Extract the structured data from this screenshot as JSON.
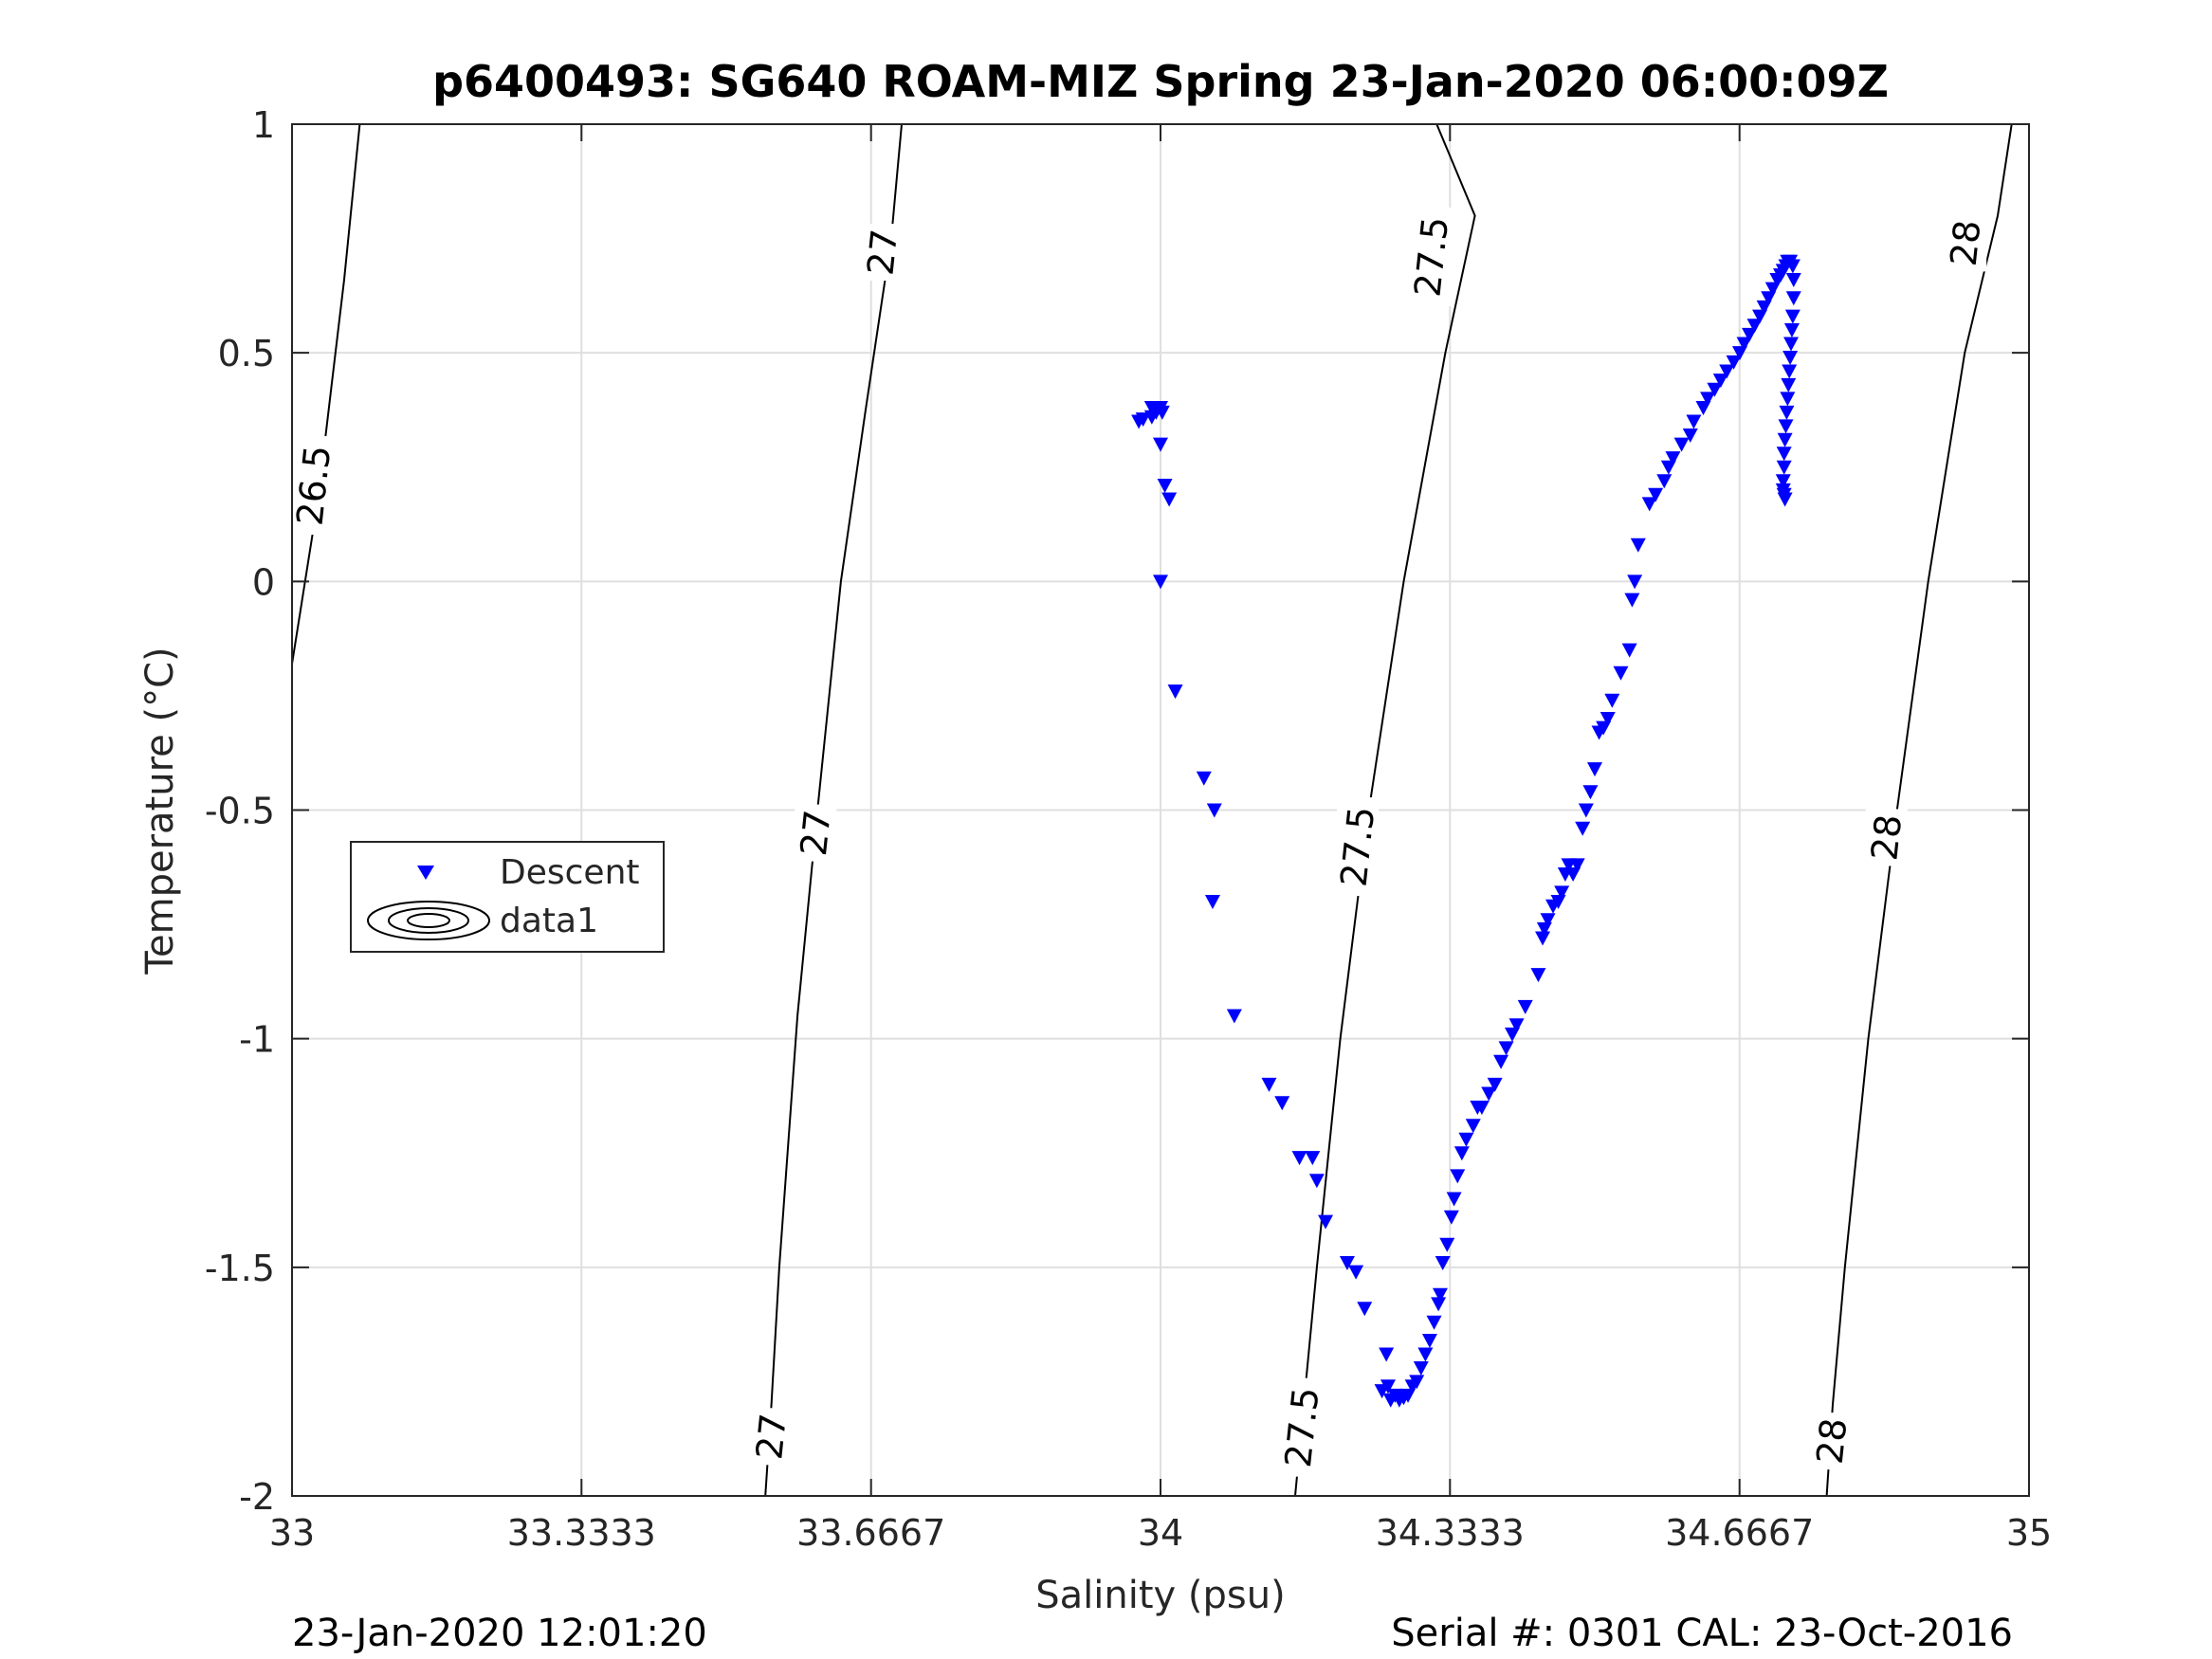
{
  "chart_data": {
    "type": "scatter",
    "title": "p6400493: SG640 ROAM-MIZ Spring 23-Jan-2020 06:00:09Z",
    "xlabel": "Salinity (psu)",
    "ylabel": "Temperature (°C)",
    "xlim": [
      33,
      35
    ],
    "ylim": [
      -2,
      1
    ],
    "grid": true,
    "legend_position": "middle-left",
    "x_ticks": [
      "33",
      "33.3333",
      "33.6667",
      "34",
      "34.3333",
      "34.6667",
      "35"
    ],
    "x_tick_values": [
      33,
      33.3333,
      33.6667,
      34,
      34.3333,
      34.6667,
      35
    ],
    "y_ticks": [
      "1",
      "0.5",
      "0",
      "-0.5",
      "-1",
      "-1.5",
      "-2"
    ],
    "y_tick_values": [
      1,
      0.5,
      0,
      -0.5,
      -1,
      -1.5,
      -2
    ],
    "marker_color": "#0000ff",
    "series": [
      {
        "name": "Descent",
        "marker": "triangle-down",
        "points": [
          [
            33.99,
            0.38
          ],
          [
            33.997,
            0.38
          ],
          [
            34.0,
            0.38
          ],
          [
            33.995,
            0.37
          ],
          [
            34.002,
            0.37
          ],
          [
            33.99,
            0.36
          ],
          [
            33.98,
            0.355
          ],
          [
            33.975,
            0.35
          ],
          [
            34.0,
            0.3
          ],
          [
            34.005,
            0.21
          ],
          [
            34.01,
            0.18
          ],
          [
            34.0,
            0.0
          ],
          [
            34.017,
            -0.24
          ],
          [
            34.05,
            -0.43
          ],
          [
            34.062,
            -0.5
          ],
          [
            34.06,
            -0.7
          ],
          [
            34.085,
            -0.95
          ],
          [
            34.125,
            -1.1
          ],
          [
            34.14,
            -1.14
          ],
          [
            34.16,
            -1.26
          ],
          [
            34.175,
            -1.26
          ],
          [
            34.18,
            -1.31
          ],
          [
            34.19,
            -1.4
          ],
          [
            34.215,
            -1.49
          ],
          [
            34.225,
            -1.51
          ],
          [
            34.235,
            -1.59
          ],
          [
            34.26,
            -1.69
          ],
          [
            34.255,
            -1.77
          ],
          [
            34.262,
            -1.76
          ],
          [
            34.265,
            -1.79
          ],
          [
            34.27,
            -1.78
          ],
          [
            34.275,
            -1.79
          ],
          [
            34.28,
            -1.785
          ],
          [
            34.285,
            -1.78
          ],
          [
            34.29,
            -1.76
          ],
          [
            34.295,
            -1.75
          ],
          [
            34.3,
            -1.72
          ],
          [
            34.305,
            -1.69
          ],
          [
            34.31,
            -1.66
          ],
          [
            34.315,
            -1.62
          ],
          [
            34.32,
            -1.58
          ],
          [
            34.322,
            -1.56
          ],
          [
            34.325,
            -1.49
          ],
          [
            34.33,
            -1.45
          ],
          [
            34.335,
            -1.39
          ],
          [
            34.338,
            -1.35
          ],
          [
            34.342,
            -1.3
          ],
          [
            34.347,
            -1.25
          ],
          [
            34.352,
            -1.22
          ],
          [
            34.36,
            -1.19
          ],
          [
            34.365,
            -1.15
          ],
          [
            34.37,
            -1.15
          ],
          [
            34.378,
            -1.12
          ],
          [
            34.385,
            -1.1
          ],
          [
            34.392,
            -1.05
          ],
          [
            34.398,
            -1.02
          ],
          [
            34.405,
            -0.99
          ],
          [
            34.41,
            -0.97
          ],
          [
            34.42,
            -0.93
          ],
          [
            34.435,
            -0.86
          ],
          [
            34.44,
            -0.78
          ],
          [
            34.442,
            -0.76
          ],
          [
            34.446,
            -0.74
          ],
          [
            34.452,
            -0.71
          ],
          [
            34.458,
            -0.7
          ],
          [
            34.462,
            -0.68
          ],
          [
            34.466,
            -0.64
          ],
          [
            34.47,
            -0.62
          ],
          [
            34.475,
            -0.64
          ],
          [
            34.48,
            -0.62
          ],
          [
            34.486,
            -0.54
          ],
          [
            34.49,
            -0.5
          ],
          [
            34.495,
            -0.46
          ],
          [
            34.5,
            -0.41
          ],
          [
            34.505,
            -0.33
          ],
          [
            34.51,
            -0.32
          ],
          [
            34.515,
            -0.3
          ],
          [
            34.52,
            -0.26
          ],
          [
            34.53,
            -0.2
          ],
          [
            34.54,
            -0.15
          ],
          [
            34.543,
            -0.04
          ],
          [
            34.546,
            0.0
          ],
          [
            34.55,
            0.08
          ],
          [
            34.563,
            0.17
          ],
          [
            34.57,
            0.19
          ],
          [
            34.58,
            0.22
          ],
          [
            34.585,
            0.25
          ],
          [
            34.59,
            0.27
          ],
          [
            34.6,
            0.3
          ],
          [
            34.61,
            0.32
          ],
          [
            34.614,
            0.35
          ],
          [
            34.625,
            0.38
          ],
          [
            34.63,
            0.4
          ],
          [
            34.638,
            0.42
          ],
          [
            34.645,
            0.44
          ],
          [
            34.652,
            0.46
          ],
          [
            34.66,
            0.48
          ],
          [
            34.667,
            0.5
          ],
          [
            34.672,
            0.52
          ],
          [
            34.678,
            0.54
          ],
          [
            34.684,
            0.56
          ],
          [
            34.69,
            0.58
          ],
          [
            34.695,
            0.6
          ],
          [
            34.7,
            0.62
          ],
          [
            34.705,
            0.64
          ],
          [
            34.71,
            0.66
          ],
          [
            34.714,
            0.67
          ],
          [
            34.717,
            0.68
          ],
          [
            34.72,
            0.69
          ],
          [
            34.722,
            0.7
          ],
          [
            34.725,
            0.7
          ],
          [
            34.728,
            0.69
          ],
          [
            34.729,
            0.66
          ],
          [
            34.729,
            0.62
          ],
          [
            34.728,
            0.58
          ],
          [
            34.727,
            0.55
          ],
          [
            34.726,
            0.52
          ],
          [
            34.725,
            0.49
          ],
          [
            34.724,
            0.46
          ],
          [
            34.723,
            0.43
          ],
          [
            34.722,
            0.4
          ],
          [
            34.721,
            0.37
          ],
          [
            34.72,
            0.34
          ],
          [
            34.719,
            0.31
          ],
          [
            34.718,
            0.28
          ],
          [
            34.718,
            0.25
          ],
          [
            34.717,
            0.22
          ],
          [
            34.717,
            0.2
          ],
          [
            34.718,
            0.19
          ],
          [
            34.719,
            0.18
          ]
        ]
      },
      {
        "name": "data1",
        "marker": "contour",
        "contours": [
          {
            "label": "26.5",
            "points": [
              [
                33.0,
                -0.18
              ],
              [
                33.03,
                0.18
              ],
              [
                33.045,
                0.42
              ],
              [
                33.06,
                0.66
              ],
              [
                33.078,
                1.0
              ]
            ],
            "label_positions": [
              [
                33.025,
                0.21
              ]
            ]
          },
          {
            "label": "27",
            "points": [
              [
                33.545,
                -2.0
              ],
              [
                33.552,
                -1.8
              ],
              [
                33.561,
                -1.5
              ],
              [
                33.582,
                -0.95
              ],
              [
                33.605,
                -0.5
              ],
              [
                33.632,
                0.0
              ],
              [
                33.66,
                0.37
              ],
              [
                33.69,
                0.75
              ],
              [
                33.702,
                1.0
              ]
            ],
            "label_positions": [
              [
                33.552,
                -1.87
              ],
              [
                33.603,
                -0.55
              ],
              [
                33.68,
                0.72
              ]
            ]
          },
          {
            "label": "27.5",
            "points": [
              [
                34.155,
                -2.0
              ],
              [
                34.165,
                -1.8
              ],
              [
                34.18,
                -1.5
              ],
              [
                34.207,
                -1.0
              ],
              [
                34.24,
                -0.5
              ],
              [
                34.28,
                0.0
              ],
              [
                34.328,
                0.5
              ],
              [
                34.362,
                0.8
              ],
              [
                34.318,
                1.0
              ]
            ],
            "label_positions": [
              [
                34.163,
                -1.85
              ],
              [
                34.227,
                -0.58
              ],
              [
                34.312,
                0.71
              ]
            ]
          },
          {
            "label": "28",
            "points": [
              [
                34.767,
                -2.0
              ],
              [
                34.774,
                -1.8
              ],
              [
                34.788,
                -1.5
              ],
              [
                34.815,
                -1.0
              ],
              [
                34.848,
                -0.5
              ],
              [
                34.884,
                0.0
              ],
              [
                34.926,
                0.5
              ],
              [
                34.964,
                0.8
              ],
              [
                34.98,
                1.0
              ]
            ],
            "label_positions": [
              [
                34.773,
                -1.88
              ],
              [
                34.836,
                -0.56
              ],
              [
                34.927,
                0.74
              ]
            ]
          }
        ]
      }
    ]
  },
  "footer": {
    "left": "23-Jan-2020 12:01:20",
    "right": "Serial #: 0301  CAL: 23-Oct-2016"
  }
}
